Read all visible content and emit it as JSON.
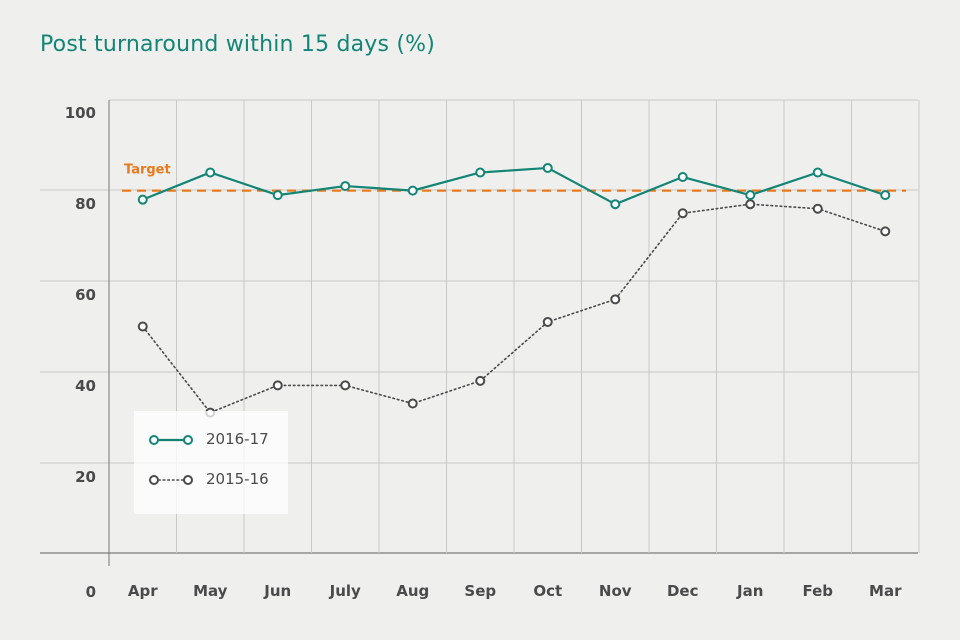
{
  "title": "Post turnaround within 15 days (%)",
  "chart_data": {
    "type": "line",
    "title": "Post turnaround within 15 days (%)",
    "categories": [
      "Apr",
      "May",
      "Jun",
      "July",
      "Aug",
      "Sep",
      "Oct",
      "Nov",
      "Dec",
      "Jan",
      "Feb",
      "Mar"
    ],
    "yticks": [
      "100",
      "80",
      "60",
      "40",
      "20",
      "0"
    ],
    "ylim": [
      0,
      100
    ],
    "grid": true,
    "legend_position": "bottom-left",
    "target": {
      "label": "Target",
      "value": 80,
      "color": "#e87a1e"
    },
    "series": [
      {
        "name": "2016-17",
        "color": "#138576",
        "style": "solid",
        "values": [
          78,
          84,
          79,
          81,
          80,
          84,
          85,
          77,
          83,
          79,
          84,
          79
        ]
      },
      {
        "name": "2015-16",
        "color": "#4a4a4a",
        "style": "dotted",
        "values": [
          50,
          31,
          37,
          37,
          33,
          38,
          51,
          56,
          75,
          77,
          76,
          71
        ]
      }
    ]
  }
}
